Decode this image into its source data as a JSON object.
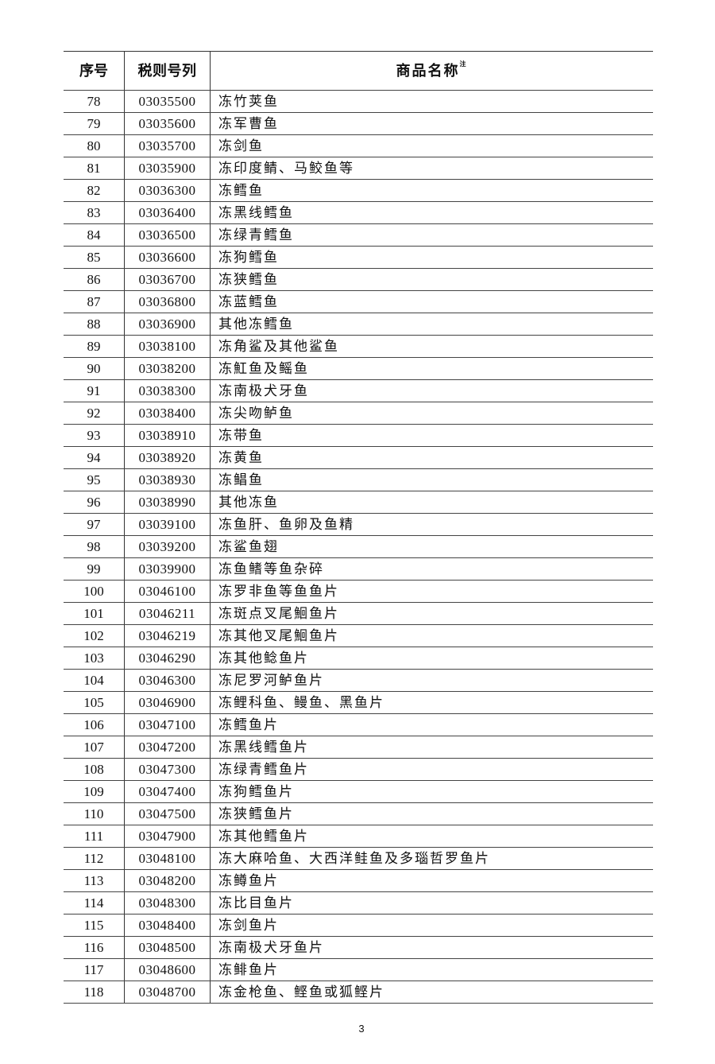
{
  "header": {
    "seq": "序号",
    "code": "税则号列",
    "name": "商品名称",
    "note_mark": "注"
  },
  "rows": [
    [
      "78",
      "03035500",
      "冻竹荚鱼"
    ],
    [
      "79",
      "03035600",
      "冻军曹鱼"
    ],
    [
      "80",
      "03035700",
      "冻剑鱼"
    ],
    [
      "81",
      "03035900",
      "冻印度鲭、马鲛鱼等"
    ],
    [
      "82",
      "03036300",
      "冻鳕鱼"
    ],
    [
      "83",
      "03036400",
      "冻黑线鳕鱼"
    ],
    [
      "84",
      "03036500",
      "冻绿青鳕鱼"
    ],
    [
      "85",
      "03036600",
      "冻狗鳕鱼"
    ],
    [
      "86",
      "03036700",
      "冻狭鳕鱼"
    ],
    [
      "87",
      "03036800",
      "冻蓝鳕鱼"
    ],
    [
      "88",
      "03036900",
      "其他冻鳕鱼"
    ],
    [
      "89",
      "03038100",
      "冻角鲨及其他鲨鱼"
    ],
    [
      "90",
      "03038200",
      "冻魟鱼及鳐鱼"
    ],
    [
      "91",
      "03038300",
      "冻南极犬牙鱼"
    ],
    [
      "92",
      "03038400",
      "冻尖吻鲈鱼"
    ],
    [
      "93",
      "03038910",
      "冻带鱼"
    ],
    [
      "94",
      "03038920",
      "冻黄鱼"
    ],
    [
      "95",
      "03038930",
      "冻鲳鱼"
    ],
    [
      "96",
      "03038990",
      "其他冻鱼"
    ],
    [
      "97",
      "03039100",
      "冻鱼肝、鱼卵及鱼精"
    ],
    [
      "98",
      "03039200",
      "冻鲨鱼翅"
    ],
    [
      "99",
      "03039900",
      "冻鱼鳍等鱼杂碎"
    ],
    [
      "100",
      "03046100",
      "冻罗非鱼等鱼鱼片"
    ],
    [
      "101",
      "03046211",
      "冻斑点叉尾鮰鱼片"
    ],
    [
      "102",
      "03046219",
      "冻其他叉尾鮰鱼片"
    ],
    [
      "103",
      "03046290",
      "冻其他鲶鱼片"
    ],
    [
      "104",
      "03046300",
      "冻尼罗河鲈鱼片"
    ],
    [
      "105",
      "03046900",
      "冻鲤科鱼、鳗鱼、黑鱼片"
    ],
    [
      "106",
      "03047100",
      "冻鳕鱼片"
    ],
    [
      "107",
      "03047200",
      "冻黑线鳕鱼片"
    ],
    [
      "108",
      "03047300",
      "冻绿青鳕鱼片"
    ],
    [
      "109",
      "03047400",
      "冻狗鳕鱼片"
    ],
    [
      "110",
      "03047500",
      "冻狭鳕鱼片"
    ],
    [
      "111",
      "03047900",
      "冻其他鳕鱼片"
    ],
    [
      "112",
      "03048100",
      "冻大麻哈鱼、大西洋鲑鱼及多瑙哲罗鱼片"
    ],
    [
      "113",
      "03048200",
      "冻鳟鱼片"
    ],
    [
      "114",
      "03048300",
      "冻比目鱼片"
    ],
    [
      "115",
      "03048400",
      "冻剑鱼片"
    ],
    [
      "116",
      "03048500",
      "冻南极犬牙鱼片"
    ],
    [
      "117",
      "03048600",
      "冻鲱鱼片"
    ],
    [
      "118",
      "03048700",
      "冻金枪鱼、鲣鱼或狐鲣片"
    ]
  ],
  "page_number": "3"
}
